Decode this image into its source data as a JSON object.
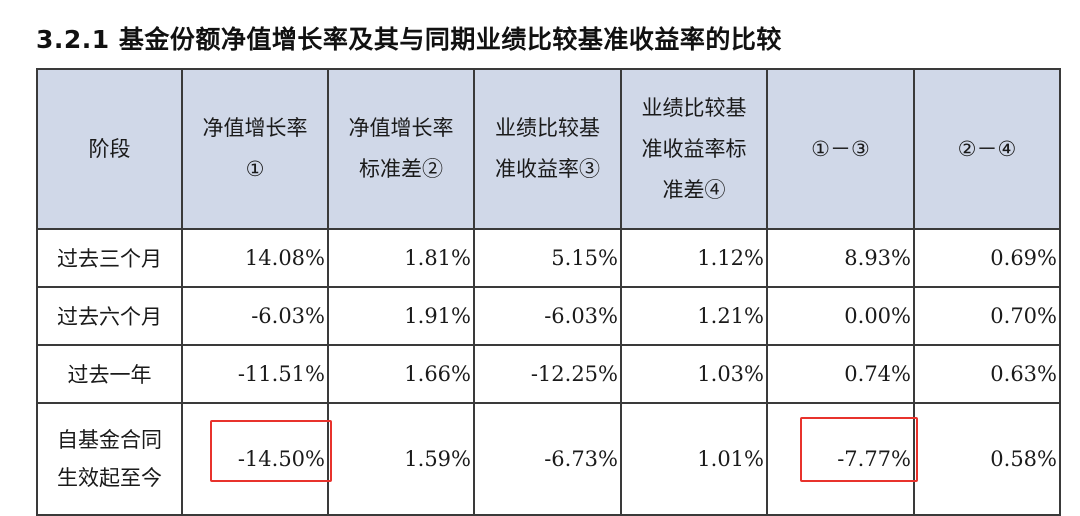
{
  "title": "3.2.1 基金份额净值增长率及其与同期业绩比较基准收益率的比较",
  "headers": [
    [
      "阶段"
    ],
    [
      "净值增长率",
      "①"
    ],
    [
      "净值增长率",
      "标准差②"
    ],
    [
      "业绩比较基",
      "准收益率③"
    ],
    [
      "业绩比较基",
      "准收益率标",
      "准差④"
    ],
    [
      "①－③"
    ],
    [
      "②－④"
    ]
  ],
  "rows": [
    {
      "stage": [
        "过去三个月"
      ],
      "values": [
        "14.08%",
        "1.81%",
        "5.15%",
        "1.12%",
        "8.93%",
        "0.69%"
      ]
    },
    {
      "stage": [
        "过去六个月"
      ],
      "values": [
        "-6.03%",
        "1.91%",
        "-6.03%",
        "1.21%",
        "0.00%",
        "0.70%"
      ]
    },
    {
      "stage": [
        "过去一年"
      ],
      "values": [
        "-11.51%",
        "1.66%",
        "-12.25%",
        "1.03%",
        "0.74%",
        "0.63%"
      ]
    },
    {
      "stage": [
        "自基金合同",
        "生效起至今"
      ],
      "values": [
        "-14.50%",
        "1.59%",
        "-6.73%",
        "1.01%",
        "-7.77%",
        "0.58%"
      ]
    }
  ],
  "highlight_color": "#e8322c"
}
